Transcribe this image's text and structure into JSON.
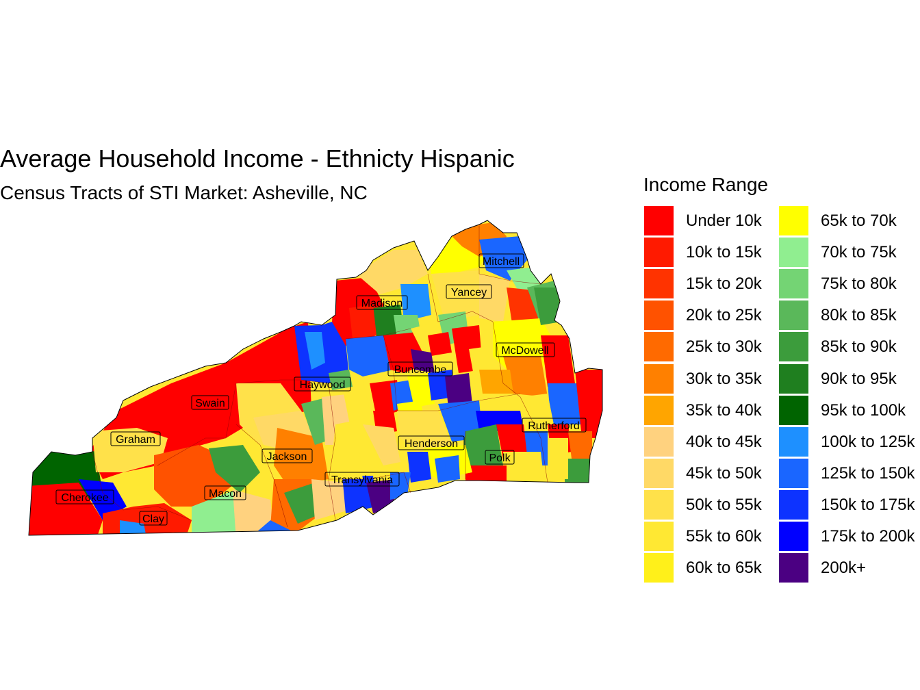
{
  "title": "Average Household Income - Ethnicty Hispanic",
  "subtitle": "Census Tracts of STI Market: Asheville, NC",
  "legend": {
    "title": "Income Range",
    "items": [
      {
        "label": "Under 10k",
        "color": "#ff0000"
      },
      {
        "label": "10k to 15k",
        "color": "#ff1a00"
      },
      {
        "label": "15k to 20k",
        "color": "#ff3300"
      },
      {
        "label": "20k to 25k",
        "color": "#ff5200"
      },
      {
        "label": "25k to 30k",
        "color": "#ff6a00"
      },
      {
        "label": "30k to 35k",
        "color": "#ff8000"
      },
      {
        "label": "35k to 40k",
        "color": "#ffa500"
      },
      {
        "label": "40k to 45k",
        "color": "#ffd27f"
      },
      {
        "label": "45k to 50k",
        "color": "#ffd966"
      },
      {
        "label": "50k to 55k",
        "color": "#ffe14a"
      },
      {
        "label": "55k to 60k",
        "color": "#ffe833"
      },
      {
        "label": "60k to 65k",
        "color": "#fff01a"
      },
      {
        "label": "65k to 70k",
        "color": "#ffff00"
      },
      {
        "label": "70k to 75k",
        "color": "#90ee90"
      },
      {
        "label": "75k to 80k",
        "color": "#74d474"
      },
      {
        "label": "80k to 85k",
        "color": "#5ab85a"
      },
      {
        "label": "85k to 90k",
        "color": "#3c9c3c"
      },
      {
        "label": "90k to 95k",
        "color": "#1f7f1f"
      },
      {
        "label": "95k to 100k",
        "color": "#006400"
      },
      {
        "label": "100k to 125k",
        "color": "#1e90ff"
      },
      {
        "label": "125k to 150k",
        "color": "#1a66ff"
      },
      {
        "label": "150k to 175k",
        "color": "#0d33ff"
      },
      {
        "label": "175k to 200k",
        "color": "#0000ff"
      },
      {
        "label": "200k+",
        "color": "#4b0082"
      }
    ]
  },
  "counties": [
    {
      "name": "Mitchell"
    },
    {
      "name": "Yancey"
    },
    {
      "name": "Madison"
    },
    {
      "name": "McDowell"
    },
    {
      "name": "Buncombe"
    },
    {
      "name": "Haywood"
    },
    {
      "name": "Swain"
    },
    {
      "name": "Graham"
    },
    {
      "name": "Rutherford"
    },
    {
      "name": "Jackson"
    },
    {
      "name": "Henderson"
    },
    {
      "name": "Polk"
    },
    {
      "name": "Transylvania"
    },
    {
      "name": "Macon"
    },
    {
      "name": "Cherokee"
    },
    {
      "name": "Clay"
    }
  ]
}
